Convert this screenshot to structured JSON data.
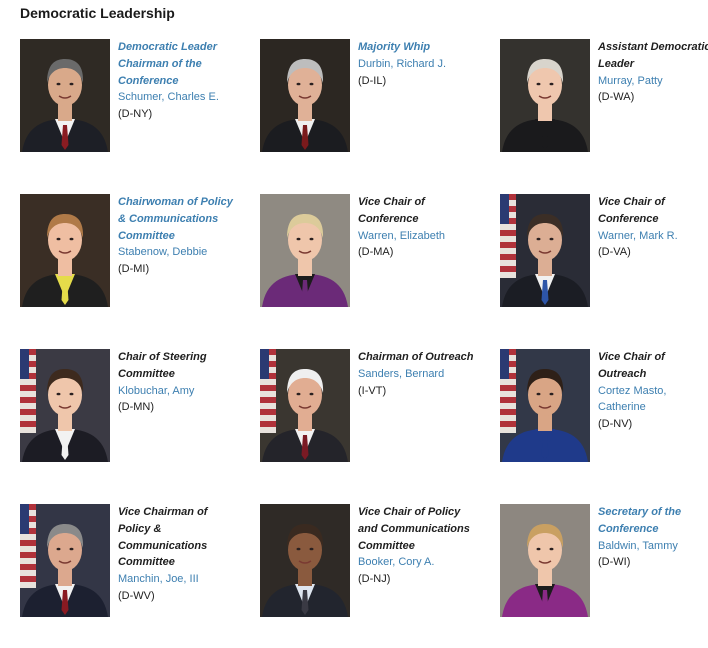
{
  "page": {
    "heading": "Democratic Leadership"
  },
  "members": [
    {
      "title": "Democratic Leader Chairman of the Conference",
      "title_is_link": true,
      "name": "Schumer, Charles E.",
      "party": "(D-NY)",
      "bg": "#2f2a24",
      "skin": "#d9a98a",
      "hair": "#6a6a6a",
      "suit": "#1d1f26",
      "shirt": "#f3f3f3",
      "accent": "#8a1c22",
      "flag": false
    },
    {
      "title": "Majority Whip",
      "title_is_link": true,
      "name": "Durbin, Richard J.",
      "party": "(D-IL)",
      "bg": "#2c2722",
      "skin": "#e0b197",
      "hair": "#bdbdbd",
      "suit": "#1b1c20",
      "shirt": "#f0f0f0",
      "accent": "#7a1a1c",
      "flag": false
    },
    {
      "title": "Assistant Democratic Leader",
      "title_is_link": false,
      "name": "Murray, Patty",
      "party": "(D-WA)",
      "bg": "#34322e",
      "skin": "#efc7ae",
      "hair": "#d8d4cc",
      "suit": "#1a1a1c",
      "shirt": "#1a1a1c",
      "accent": "#1a1a1c",
      "flag": false
    },
    {
      "title": "Chairwoman of Policy & Communications Committee",
      "title_is_link": true,
      "name": "Stabenow, Debbie",
      "party": "(D-MI)",
      "bg": "#3a2e25",
      "skin": "#efbea2",
      "hair": "#b07a48",
      "suit": "#1f1f1f",
      "shirt": "#e5dc4a",
      "accent": "#e5dc4a",
      "flag": false
    },
    {
      "title": "Vice Chair of Conference",
      "title_is_link": false,
      "name": "Warren, Elizabeth",
      "party": "(D-MA)",
      "bg": "#8f8a82",
      "skin": "#efc6ab",
      "hair": "#dccb9a",
      "suit": "#6b2a78",
      "shirt": "#1c1c1c",
      "accent": "#6b2a78",
      "flag": false
    },
    {
      "title": "Vice Chair of Conference",
      "title_is_link": false,
      "name": "Warner, Mark R.",
      "party": "(D-VA)",
      "bg": "#2a2c36",
      "skin": "#dcae94",
      "hair": "#3b2e26",
      "suit": "#1b1d24",
      "shirt": "#f1f1f1",
      "accent": "#2d55a8",
      "flag": true
    },
    {
      "title": "Chair of Steering Committee",
      "title_is_link": false,
      "name": "Klobuchar, Amy",
      "party": "(D-MN)",
      "bg": "#3b3a44",
      "skin": "#efc6ab",
      "hair": "#3d2a1e",
      "suit": "#1c1c24",
      "shirt": "#f2f2f2",
      "accent": "#f2f2f2",
      "flag": true
    },
    {
      "title": "Chairman of Outreach",
      "title_is_link": false,
      "name": "Sanders, Bernard",
      "party": "(I-VT)",
      "bg": "#3a3630",
      "skin": "#e1ad92",
      "hair": "#efefef",
      "suit": "#24242a",
      "shirt": "#f2f2f2",
      "accent": "#7a1a24",
      "flag": true
    },
    {
      "title": "Vice Chair of Outreach",
      "title_is_link": false,
      "name": "Cortez Masto, Catherine",
      "party": "(D-NV)",
      "bg": "#323848",
      "skin": "#d9a585",
      "hair": "#2e2018",
      "suit": "#1f3a8a",
      "shirt": "#1f3a8a",
      "accent": "#1f3a8a",
      "flag": true
    },
    {
      "title": "Vice Chairman of Policy & Communications Committee",
      "title_is_link": false,
      "name": "Manchin, Joe, III",
      "party": "(D-WV)",
      "bg": "#333646",
      "skin": "#dca88e",
      "hair": "#8a8a8a",
      "suit": "#1c2030",
      "shirt": "#f2f2f2",
      "accent": "#8a1a22",
      "flag": true
    },
    {
      "title": "Vice Chair of Policy and Communications Committee",
      "title_is_link": false,
      "name": "Booker, Cory A.",
      "party": "(D-NJ)",
      "bg": "#2f2a26",
      "skin": "#8a5a3e",
      "hair": "#3a2a20",
      "suit": "#22252e",
      "shirt": "#dfe6f0",
      "accent": "#3a3a44",
      "flag": false
    },
    {
      "title": "Secretary of the Conference",
      "title_is_link": true,
      "name": "Baldwin, Tammy",
      "party": "(D-WI)",
      "bg": "#8d8780",
      "skin": "#efc6ab",
      "hair": "#c9a062",
      "suit": "#8a2a86",
      "shirt": "#1c1c1c",
      "accent": "#8a2a86",
      "flag": false
    }
  ]
}
